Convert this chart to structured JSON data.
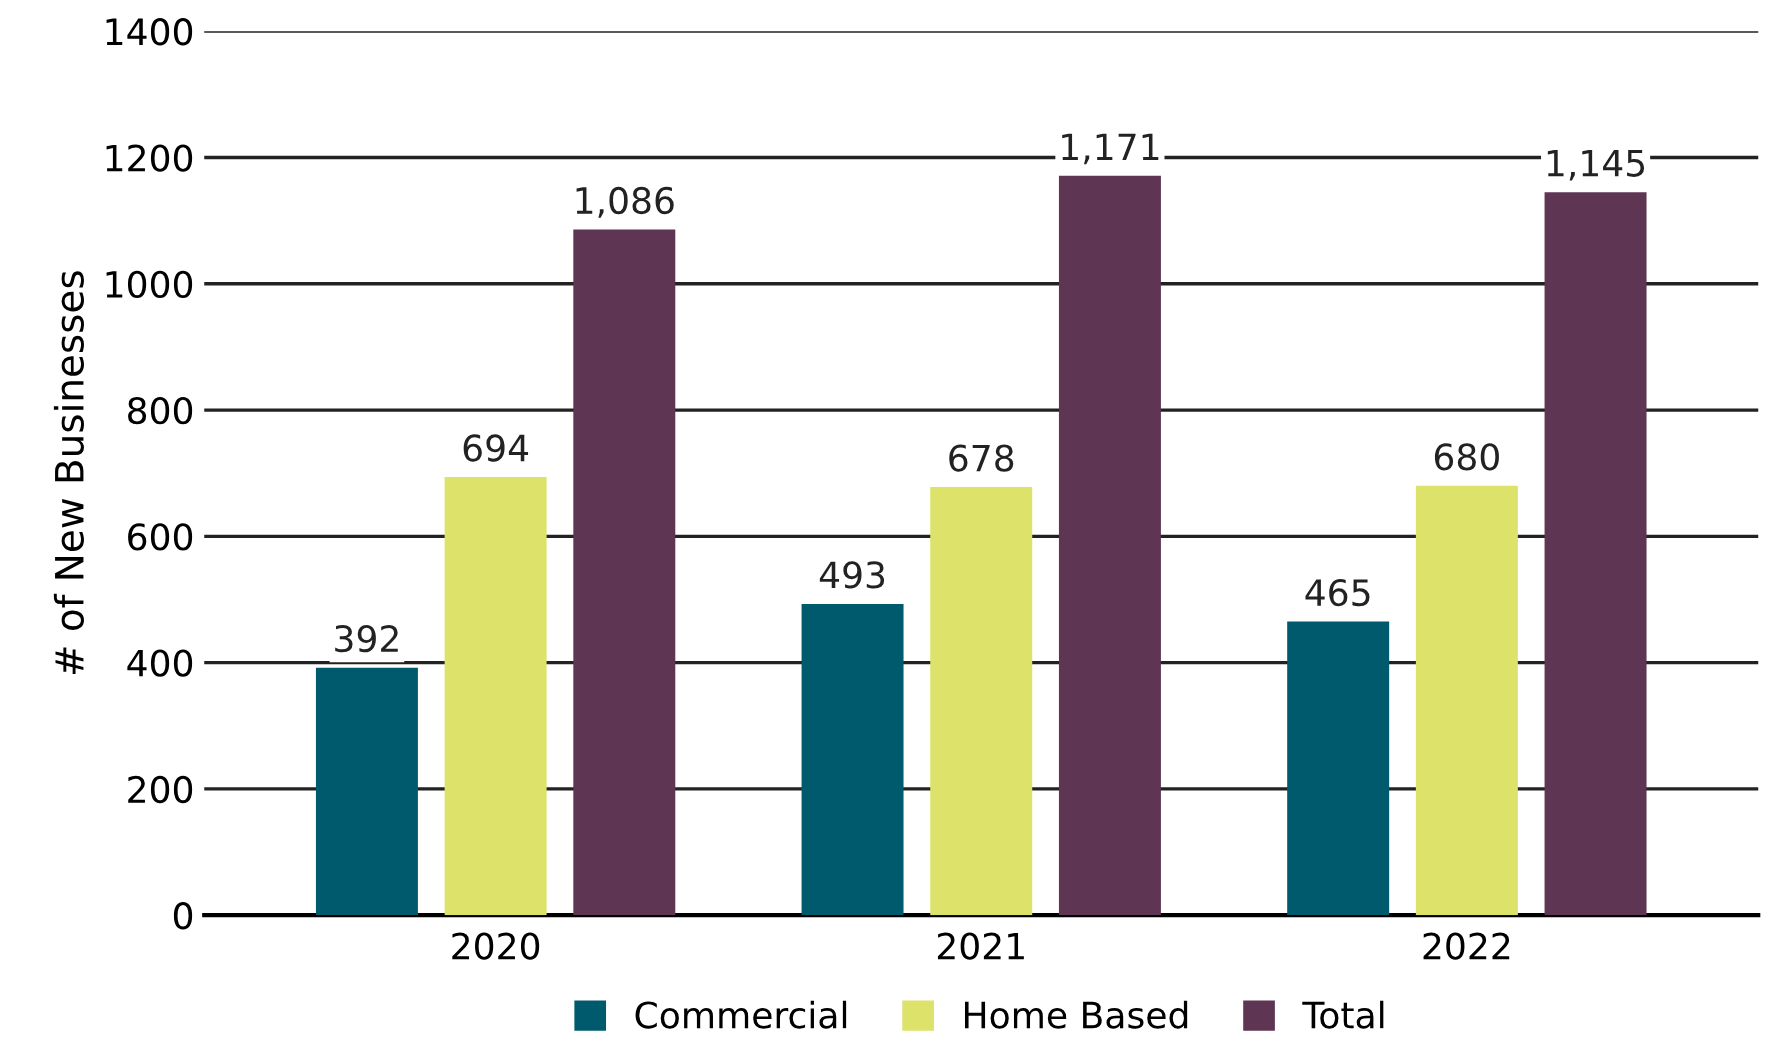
{
  "chart_data": {
    "type": "bar",
    "ylabel": "# of New Businesses",
    "categories": [
      "2020",
      "2021",
      "2022"
    ],
    "series": [
      {
        "name": "Commercial",
        "color": "#005a6e",
        "values": [
          392,
          493,
          465
        ],
        "value_labels": [
          "392",
          "493",
          "465"
        ]
      },
      {
        "name": "Home Based",
        "color": "#dde26a",
        "values": [
          694,
          678,
          680
        ],
        "value_labels": [
          "694",
          "678",
          "680"
        ]
      },
      {
        "name": "Total",
        "color": "#5e3552",
        "values": [
          1086,
          1171,
          1145
        ],
        "value_labels": [
          "1,086",
          "1,171",
          "1,145"
        ]
      }
    ],
    "ylim": [
      0,
      1400
    ],
    "yticks": [
      0,
      200,
      400,
      600,
      800,
      1000,
      1200,
      1400
    ],
    "grid": "y",
    "legend": "bottom"
  }
}
